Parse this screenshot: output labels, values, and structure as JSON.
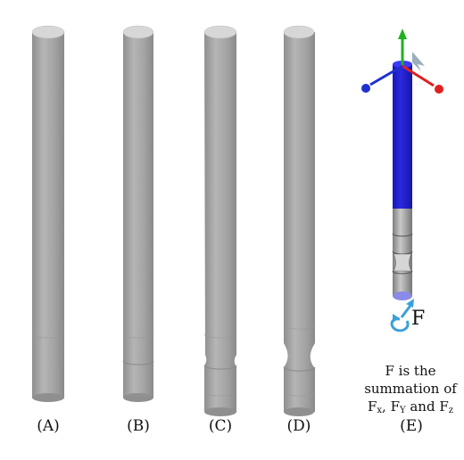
{
  "panels": [
    {
      "id": "A",
      "label": "(A)"
    },
    {
      "id": "B",
      "label": "(B)"
    },
    {
      "id": "C",
      "label": "(C)"
    },
    {
      "id": "D",
      "label": "(D)"
    },
    {
      "id": "E",
      "label": "(E)"
    }
  ],
  "force": {
    "symbol": "F"
  },
  "caption": {
    "line1": "F is the",
    "line2": "summation of",
    "fx_base": "F",
    "fx_sub": "x",
    "sep1": ", ",
    "fy_base": "F",
    "fy_sub": "Y",
    "sep2": " and ",
    "fz_base": "F",
    "fz_sub": "z"
  },
  "colors": {
    "rod_gray": "#a8a8a8",
    "rod_blue": "#1f1fd6",
    "axis_x": "#e02020",
    "axis_y": "#20b020",
    "axis_z": "#2030d0",
    "force_arrow": "#3aa0d8"
  },
  "icons": [
    "triad-axes-icon",
    "force-arrow-icon",
    "moment-arrow-icon"
  ]
}
